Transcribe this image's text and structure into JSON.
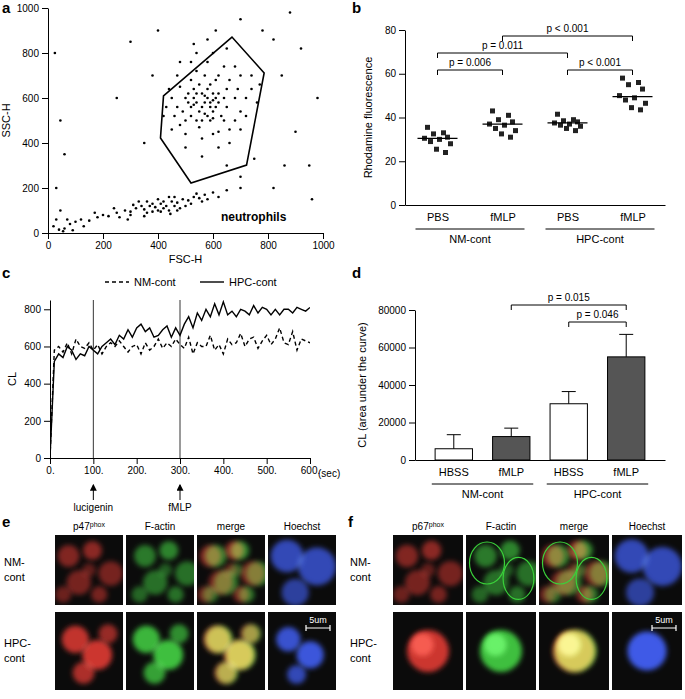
{
  "chart_data": [
    {
      "panel_label": "a",
      "type": "scatter",
      "marker": "circle",
      "color": "#000000",
      "x_label": "FSC-H",
      "y_label": "SSC-H",
      "xlim": [
        0,
        1000
      ],
      "ylim": [
        0,
        1000
      ],
      "xticks": [
        0,
        200,
        400,
        600,
        800,
        1000
      ],
      "yticks": [
        0,
        200,
        400,
        600,
        800,
        1000
      ],
      "x": [
        560,
        540,
        600,
        580,
        520,
        620,
        500,
        650,
        590,
        530,
        610,
        470,
        680,
        550,
        640,
        500,
        570,
        600,
        520,
        560,
        480,
        700,
        620,
        540,
        660,
        450,
        590,
        610,
        530,
        570,
        490,
        640,
        580,
        550,
        600,
        520,
        690,
        460,
        720,
        580,
        640,
        500,
        560,
        600,
        680,
        740,
        440,
        520,
        620,
        660,
        480,
        700,
        540,
        590,
        630,
        510,
        570,
        610,
        550,
        650,
        470,
        720,
        430,
        600,
        680,
        540,
        760,
        500,
        620,
        580,
        650,
        450,
        700,
        530,
        740,
        560,
        420,
        770,
        610,
        480,
        660,
        590,
        570,
        530,
        600,
        560,
        620,
        540,
        580,
        510,
        850,
        900,
        820,
        380,
        350,
        950,
        780,
        880,
        300,
        700,
        400,
        980,
        860,
        920,
        250,
        750,
        820,
        960,
        700,
        650,
        80,
        100,
        120,
        150,
        180,
        200,
        220,
        250,
        280,
        300,
        320,
        350,
        370,
        390,
        410,
        430,
        450,
        470,
        490,
        510,
        530,
        550,
        570,
        400,
        360,
        420,
        440,
        460,
        380,
        340,
        300,
        260,
        330,
        480,
        520,
        560,
        600,
        620,
        650,
        700,
        60,
        70,
        130,
        170,
        240,
        290,
        350,
        410,
        445,
        500,
        540,
        580,
        400,
        360,
        310,
        460,
        380,
        420,
        440,
        470,
        40,
        55,
        90,
        20,
        30,
        45,
        30,
        60,
        45,
        25
      ],
      "y": [
        560,
        580,
        540,
        600,
        520,
        620,
        600,
        560,
        500,
        640,
        680,
        560,
        600,
        470,
        500,
        500,
        700,
        620,
        560,
        620,
        650,
        540,
        450,
        720,
        680,
        600,
        580,
        560,
        600,
        530,
        540,
        600,
        640,
        540,
        510,
        680,
        640,
        520,
        600,
        760,
        740,
        440,
        420,
        800,
        500,
        640,
        640,
        760,
        700,
        460,
        480,
        700,
        500,
        660,
        520,
        620,
        580,
        600,
        660,
        640,
        700,
        520,
        560,
        440,
        740,
        800,
        580,
        380,
        380,
        860,
        820,
        460,
        460,
        840,
        700,
        340,
        520,
        660,
        900,
        760,
        400,
        560,
        610,
        570,
        590,
        500,
        580,
        620,
        520,
        580,
        700,
        450,
        860,
        700,
        400,
        300,
        900,
        980,
        850,
        950,
        900,
        600,
        300,
        820,
        600,
        330,
        200,
        150,
        250,
        300,
        40,
        50,
        60,
        55,
        70,
        80,
        75,
        90,
        100,
        95,
        110,
        105,
        120,
        115,
        130,
        120,
        140,
        135,
        150,
        145,
        160,
        155,
        170,
        100,
        90,
        110,
        100,
        120,
        130,
        120,
        80,
        70,
        140,
        110,
        130,
        140,
        180,
        160,
        190,
        200,
        20,
        60,
        30,
        90,
        110,
        60,
        75,
        95,
        85,
        120,
        175,
        150,
        150,
        140,
        125,
        160,
        95,
        140,
        160,
        100,
        15,
        8,
        12,
        30,
        60,
        100,
        200,
        350,
        500,
        800
      ],
      "gate": {
        "label": "neutrophils",
        "x": [
          420,
          669,
          786,
          722,
          520,
          409
        ],
        "y": [
          609,
          871,
          711,
          302,
          222,
          422
        ]
      }
    },
    {
      "panel_label": "b",
      "type": "strip",
      "marker": "square",
      "color": "#222222",
      "y_label": "Rhodamine fluorescence",
      "ylim": [
        0,
        80
      ],
      "yticks": [
        0,
        20,
        40,
        60,
        80
      ],
      "categories": [
        "PBS",
        "fMLP",
        "PBS",
        "fMLP"
      ],
      "groups": [
        "NM-cont",
        "HPC-cont"
      ],
      "values": [
        [
          35.5,
          33,
          32.5,
          31,
          30.5,
          30,
          29,
          28,
          25.5,
          24
        ],
        [
          43,
          41,
          39,
          38,
          37,
          36.5,
          35,
          34,
          32.5,
          31
        ],
        [
          41.5,
          39,
          38.5,
          38,
          37.5,
          37,
          36.5,
          36,
          35,
          34
        ],
        [
          58,
          56,
          55,
          53,
          50,
          49,
          48,
          46.5,
          44.5,
          43.5
        ]
      ],
      "means": [
        30.5,
        37,
        37.5,
        49.5
      ],
      "annotations": [
        {
          "text": "p = 0.011",
          "from": 0,
          "to": 2
        },
        {
          "text": "p < 0.001",
          "from": 1,
          "to": 3
        },
        {
          "text": "p = 0.006",
          "from": 0,
          "to": 1
        },
        {
          "text": "p < 0.001",
          "from": 2,
          "to": 3
        }
      ]
    },
    {
      "panel_label": "c",
      "type": "line",
      "legend": "top",
      "y_label": "CL",
      "x_label": "(sec)",
      "xlim": [
        0,
        600
      ],
      "ylim": [
        0,
        850
      ],
      "xticks": [
        {
          "value": 0,
          "label": "0."
        },
        {
          "value": 100,
          "label": "100."
        },
        {
          "value": 200,
          "label": "200."
        },
        {
          "value": 300,
          "label": "300."
        },
        {
          "value": 400,
          "label": "400."
        },
        {
          "value": 500,
          "label": "500."
        },
        {
          "value": 600,
          "label": "600."
        }
      ],
      "yticks": [
        0,
        200,
        400,
        600,
        800
      ],
      "x": [
        0,
        10,
        20,
        30,
        40,
        50,
        60,
        70,
        80,
        90,
        100,
        110,
        120,
        130,
        140,
        150,
        160,
        170,
        180,
        190,
        200,
        210,
        220,
        230,
        240,
        250,
        260,
        270,
        280,
        290,
        300,
        310,
        320,
        330,
        340,
        350,
        360,
        370,
        380,
        390,
        400,
        410,
        420,
        430,
        440,
        450,
        460,
        470,
        480,
        490,
        500,
        510,
        520,
        530,
        540,
        550,
        560,
        570,
        580,
        590,
        600
      ],
      "series": [
        {
          "name": "NM-cont",
          "color": "#000000",
          "line_style": "dashed",
          "values": [
            0,
            580,
            600,
            570,
            620,
            560,
            640,
            600,
            590,
            620,
            580,
            610,
            560,
            600,
            620,
            600,
            630,
            600,
            570,
            600,
            610,
            560,
            620,
            580,
            600,
            640,
            590,
            620,
            600,
            640,
            610,
            590,
            650,
            560,
            620,
            600,
            600,
            660,
            580,
            610,
            560,
            640,
            610,
            620,
            670,
            600,
            640,
            650,
            590,
            630,
            660,
            610,
            640,
            700,
            620,
            610,
            680,
            580,
            640,
            630,
            620
          ]
        },
        {
          "name": "HPC-cont",
          "color": "#000000",
          "line_style": "solid",
          "values": [
            0,
            520,
            560,
            540,
            600,
            580,
            530,
            560,
            550,
            600,
            580,
            560,
            600,
            620,
            640,
            610,
            660,
            640,
            690,
            650,
            700,
            720,
            680,
            700,
            650,
            660,
            690,
            710,
            650,
            700,
            660,
            720,
            760,
            700,
            780,
            740,
            800,
            760,
            830,
            770,
            840,
            770,
            790,
            760,
            800,
            790,
            770,
            820,
            780,
            810,
            800,
            770,
            800,
            770,
            800,
            800,
            780,
            810,
            800,
            790,
            810
          ]
        }
      ],
      "annotations": [
        {
          "text": "lucigenin",
          "x": 100
        },
        {
          "text": "fMLP",
          "x": 300
        }
      ]
    },
    {
      "panel_label": "d",
      "type": "bar",
      "y_label": "CL (area under the curve)",
      "ylim": [
        0,
        80000
      ],
      "yticks": [
        0,
        20000,
        40000,
        60000,
        80000
      ],
      "categories": [
        "HBSS",
        "fMLP",
        "HBSS",
        "fMLP"
      ],
      "groups": [
        "NM-cont",
        "HPC-cont"
      ],
      "values": [
        6000,
        12500,
        30000,
        55000
      ],
      "errors": [
        7500,
        4500,
        6500,
        12000
      ],
      "colors": [
        "#ffffff",
        "#555555",
        "#ffffff",
        "#555555"
      ],
      "annotations": [
        {
          "text": "p = 0.015",
          "from": 1,
          "to": 3
        },
        {
          "text": "p = 0.046",
          "from": 2,
          "to": 3
        }
      ]
    }
  ],
  "image_panels": [
    {
      "panel_label": "e",
      "columns": [
        {
          "text": "p47",
          "superscript": "phox"
        },
        {
          "text": "F-actin"
        },
        {
          "text": "merge"
        },
        {
          "text": "Hoechst"
        }
      ],
      "rows": [
        [
          "NM-",
          "cont"
        ],
        [
          "HPC-",
          "cont"
        ]
      ],
      "scale_bar": "5um"
    },
    {
      "panel_label": "f",
      "columns": [
        {
          "text": "p67",
          "superscript": "phox"
        },
        {
          "text": "F-actin"
        },
        {
          "text": "merge"
        },
        {
          "text": "Hoechst"
        }
      ],
      "rows": [
        [
          "NM-",
          "cont"
        ],
        [
          "HPC-",
          "cont"
        ]
      ],
      "scale_bar": "5um"
    }
  ]
}
